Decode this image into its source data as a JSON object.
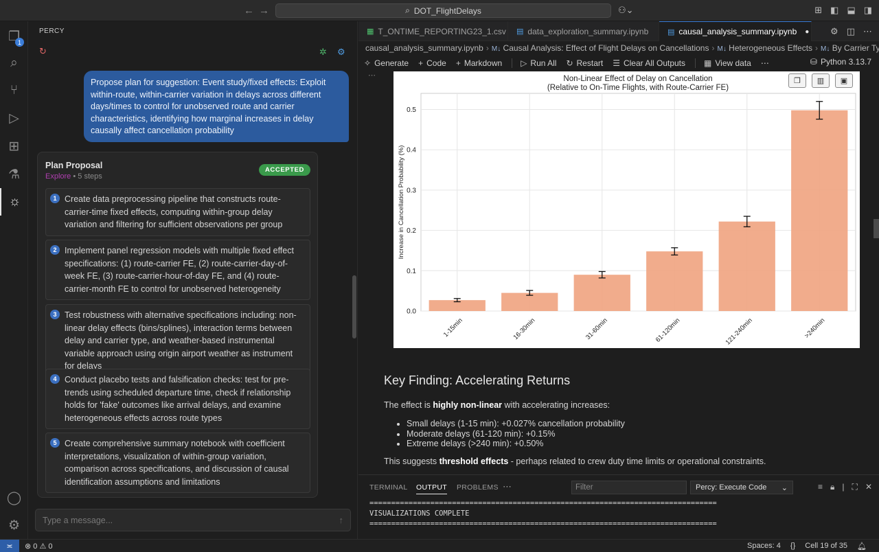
{
  "window": {
    "search_text": "DOT_FlightDelays"
  },
  "sidebar": {
    "title": "PERCY",
    "badge_count": "1"
  },
  "chat": {
    "user_message": "Propose plan for suggestion: Event study/fixed effects: Exploit within-route, within-carrier variation in delays across different days/times to control for unobserved route and carrier characteristics, identifying how marginal increases in delay causally affect cancellation probability",
    "plan": {
      "title": "Plan Proposal",
      "mode": "Explore",
      "steps_label": "• 5 steps",
      "status": "ACCEPTED",
      "steps": [
        {
          "num": "1",
          "text": "Create data preprocessing pipeline that constructs route-carrier-time fixed effects, computing within-group delay variation and filtering for sufficient observations per group"
        },
        {
          "num": "2",
          "text": "Implement panel regression models with multiple fixed effect specifications: (1) route-carrier FE, (2) route-carrier-day-of-week FE, (3) route-carrier-hour-of-day FE, and (4) route-carrier-month FE to control for unobserved heterogeneity"
        },
        {
          "num": "3",
          "text": "Test robustness with alternative specifications including: non-linear delay effects (bins/splines), interaction terms between delay and carrier type, and weather-based instrumental variable approach using origin airport weather as instrument for delays"
        },
        {
          "num": "4",
          "text": "Conduct placebo tests and falsification checks: test for pre-trends using scheduled departure time, check if relationship holds for 'fake' outcomes like arrival delays, and examine heterogeneous effects across route types"
        },
        {
          "num": "5",
          "text": "Create comprehensive summary notebook with coefficient interpretations, visualization of within-group variation, comparison across specifications, and discussion of causal identification assumptions and limitations"
        }
      ]
    },
    "input_placeholder": "Type a message..."
  },
  "editor": {
    "tabs": [
      {
        "label": "T_ONTIME_REPORTING23_1.csv",
        "icon": "csv-file-icon"
      },
      {
        "label": "data_exploration_summary.ipynb",
        "icon": "notebook-file-icon"
      },
      {
        "label": "causal_analysis_summary.ipynb",
        "icon": "notebook-file-icon",
        "active": true
      }
    ],
    "breadcrumbs": [
      "causal_analysis_summary.ipynb",
      "Causal Analysis: Effect of Flight Delays on Cancellations",
      "Heterogeneous Effects",
      "By Carrier Type"
    ],
    "breadcrumb_md_prefix": "M↓",
    "toolbar": {
      "generate": "Generate",
      "code": "Code",
      "markdown": "Markdown",
      "run_all": "Run All",
      "restart": "Restart",
      "clear_outputs": "Clear All Outputs",
      "view_data": "View data",
      "kernel": "Python 3.13.7"
    },
    "markdown": {
      "heading": "Key Finding: Accelerating Returns",
      "intro_prefix": "The effect is ",
      "intro_bold": "highly non-linear",
      "intro_suffix": " with accelerating increases:",
      "bullets": [
        "Small delays (1-15 min): +0.027% cancellation probability",
        "Moderate delays (61-120 min): +0.15%",
        "Extreme delays (>240 min): +0.50%"
      ],
      "conclusion_prefix": "This suggests ",
      "conclusion_bold": "threshold effects",
      "conclusion_suffix": " - perhaps related to crew duty time limits or operational constraints."
    }
  },
  "chart_data": {
    "type": "bar",
    "title": "Non-Linear Effect of Delay on Cancellation",
    "subtitle": "(Relative to On-Time Flights, with Route-Carrier FE)",
    "xlabel": "",
    "ylabel": "Increase in Cancellation Probability (%)",
    "categories": [
      "1-15min",
      "16-30min",
      "31-60min",
      "61-120min",
      "121-240min",
      ">240min"
    ],
    "values": [
      0.027,
      0.045,
      0.09,
      0.148,
      0.222,
      0.498
    ],
    "errors": [
      0.004,
      0.006,
      0.008,
      0.009,
      0.013,
      0.022
    ],
    "ylim": [
      0,
      0.54
    ],
    "yticks": [
      "0.0",
      "0.1",
      "0.2",
      "0.3",
      "0.4",
      "0.5"
    ],
    "grid": true,
    "bar_color": "#f0a582"
  },
  "panel": {
    "tabs": [
      "TERMINAL",
      "OUTPUT",
      "PROBLEMS"
    ],
    "active_tab": "OUTPUT",
    "filter_placeholder": "Filter",
    "output_channel": "Percy: Execute Code",
    "lines": [
      "================================================================================",
      "VISUALIZATIONS COMPLETE",
      "================================================================================"
    ]
  },
  "status": {
    "problems": "⊗ 0 ⚠ 0",
    "spaces": "Spaces: 4",
    "cell": "Cell 19 of 35"
  }
}
